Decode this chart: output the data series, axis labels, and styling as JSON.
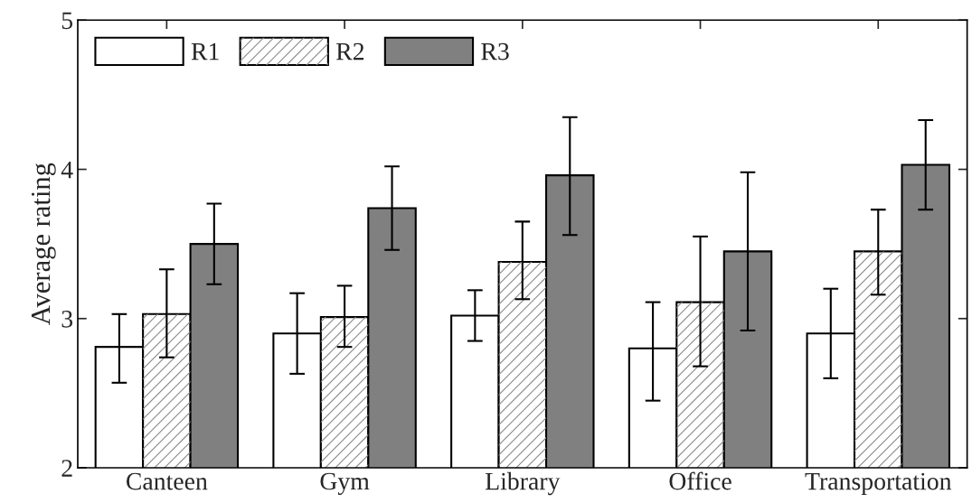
{
  "chart_data": {
    "type": "bar",
    "ylabel": "Average rating",
    "categories": [
      "Canteen",
      "Gym",
      "Library",
      "Office",
      "Transportation"
    ],
    "series": [
      {
        "name": "R1",
        "color": "#ffffff",
        "values": [
          2.81,
          2.9,
          3.02,
          2.8,
          2.9
        ],
        "errors": [
          [
            2.57,
            3.03
          ],
          [
            2.63,
            3.17
          ],
          [
            2.85,
            3.19
          ],
          [
            2.45,
            3.11
          ],
          [
            2.6,
            3.2
          ]
        ]
      },
      {
        "name": "R2",
        "color": "#ffffff",
        "values": [
          3.03,
          3.01,
          3.38,
          3.11,
          3.45
        ],
        "errors": [
          [
            2.74,
            3.33
          ],
          [
            2.81,
            3.22
          ],
          [
            3.13,
            3.65
          ],
          [
            2.68,
            3.55
          ],
          [
            3.16,
            3.73
          ]
        ]
      },
      {
        "name": "R3",
        "color": "#808080",
        "values": [
          3.5,
          3.74,
          3.96,
          3.45,
          4.03
        ],
        "errors": [
          [
            3.23,
            3.77
          ],
          [
            3.46,
            4.02
          ],
          [
            3.56,
            4.35
          ],
          [
            2.92,
            3.98
          ],
          [
            3.73,
            4.33
          ]
        ]
      }
    ],
    "ylim": [
      2,
      5
    ],
    "yticks": [
      2,
      3,
      4,
      5
    ],
    "grid": false,
    "legend": "top left"
  }
}
